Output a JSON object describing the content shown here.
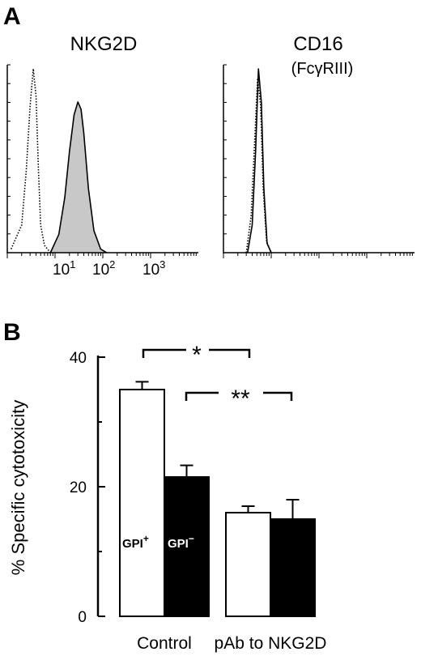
{
  "panel_a": {
    "letter": "A",
    "left": {
      "title": "NKG2D",
      "tick_labels": [
        {
          "base": "10",
          "exp": "1"
        },
        {
          "base": "10",
          "exp": "2"
        },
        {
          "base": "10",
          "exp": "3"
        }
      ]
    },
    "right": {
      "title": "CD16",
      "subtitle": "(FcγRIII)"
    }
  },
  "panel_b": {
    "letter": "B",
    "ylabel": "% Specific cytotoxicity",
    "bar_labels": {
      "gpi_plus": {
        "base": "GPI",
        "sup": "+"
      },
      "gpi_minus": {
        "base": "GPI",
        "sup": "−"
      }
    },
    "significance": [
      {
        "label": "*"
      },
      {
        "label": "**"
      }
    ]
  },
  "chart_data": [
    {
      "type": "area",
      "title": "NKG2D",
      "x_scale": "log",
      "x_tick_labels": [
        "10^1",
        "10^2",
        "10^3"
      ],
      "series": [
        {
          "style": "dotted outline",
          "fill": "none",
          "x": [
            1.2,
            2,
            2.5,
            3,
            3.5,
            4,
            4.5,
            5,
            6,
            8
          ],
          "y": [
            0.02,
            0.15,
            0.45,
            0.8,
            1.0,
            0.85,
            0.45,
            0.15,
            0.04,
            0.0
          ]
        },
        {
          "style": "solid outline",
          "fill": "#c8c8c8",
          "x": [
            8,
            12,
            16,
            20,
            25,
            30,
            35,
            40,
            50,
            65,
            90,
            120
          ],
          "y": [
            0.0,
            0.1,
            0.3,
            0.55,
            0.75,
            0.82,
            0.78,
            0.65,
            0.35,
            0.12,
            0.02,
            0.0
          ]
        }
      ]
    },
    {
      "type": "area",
      "title": "CD16",
      "subtitle": "(FcγRIII)",
      "x_scale": "log",
      "series": [
        {
          "style": "dotted outline",
          "fill": "none",
          "x": [
            3,
            3.8,
            4.5,
            5.2,
            6,
            6.8,
            8,
            10
          ],
          "y": [
            0.0,
            0.2,
            0.6,
            0.95,
            0.8,
            0.35,
            0.06,
            0.0
          ]
        },
        {
          "style": "solid outline",
          "fill": "none",
          "x": [
            3.2,
            4,
            4.7,
            5.4,
            6.2,
            7,
            8.2,
            10
          ],
          "y": [
            0.0,
            0.15,
            0.55,
            1.0,
            0.82,
            0.35,
            0.05,
            0.0
          ]
        }
      ]
    },
    {
      "type": "bar",
      "ylabel": "% Specific cytotoxicity",
      "ylim": [
        0,
        40
      ],
      "yticks": [
        0,
        20,
        40
      ],
      "categories": [
        "Control",
        "pAb to NKG2D"
      ],
      "series": [
        {
          "name": "GPI+",
          "color": "#ffffff",
          "values": [
            35,
            16
          ],
          "errors": [
            1.2,
            1.0
          ]
        },
        {
          "name": "GPI−",
          "color": "#000000",
          "values": [
            21.5,
            15
          ],
          "errors": [
            1.8,
            3.0
          ]
        }
      ],
      "annotations": [
        {
          "label": "*",
          "from": "Control GPI+",
          "to": "pAb to NKG2D GPI+"
        },
        {
          "label": "**",
          "from": "Control GPI−",
          "to": "pAb to NKG2D GPI−"
        }
      ]
    }
  ]
}
